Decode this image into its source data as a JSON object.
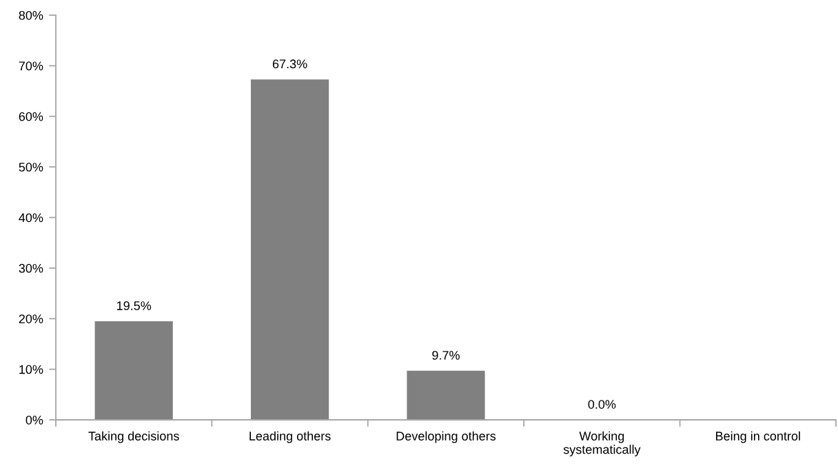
{
  "chart_data": {
    "type": "bar",
    "categories": [
      "Taking decisions",
      "Leading others",
      "Developing others",
      "Working\nsystematically",
      "Being in control"
    ],
    "values": [
      19.5,
      67.3,
      9.7,
      0.0,
      null
    ],
    "value_labels": [
      "19.5%",
      "67.3%",
      "9.7%",
      "0.0%",
      null
    ],
    "color": "#808080",
    "ylim": [
      0,
      80
    ],
    "yticks": [
      {
        "value": 0,
        "label": "0%"
      },
      {
        "value": 10,
        "label": "10%"
      },
      {
        "value": 20,
        "label": "20%"
      },
      {
        "value": 30,
        "label": "30%"
      },
      {
        "value": 40,
        "label": "40%"
      },
      {
        "value": 50,
        "label": "50%"
      },
      {
        "value": 60,
        "label": "60%"
      },
      {
        "value": 70,
        "label": "70%"
      },
      {
        "value": 80,
        "label": "80%"
      }
    ],
    "grid": false
  }
}
